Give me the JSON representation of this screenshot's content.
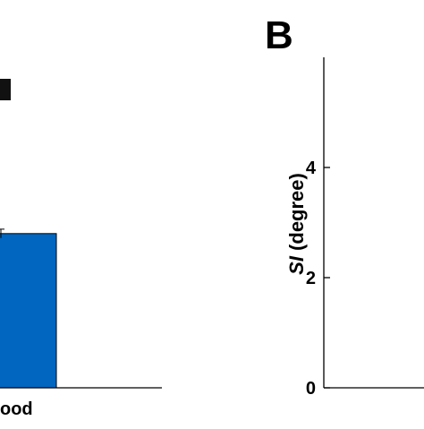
{
  "chart_data": [
    {
      "type": "bar",
      "panel_label": "",
      "categories": [
        "ood"
      ],
      "values": [
        2.8
      ],
      "error": [
        0.08
      ],
      "bar_color": "#0066c0",
      "ylim": [
        0,
        6
      ],
      "grid": false
    },
    {
      "type": "bar",
      "panel_label": "B",
      "categories": [],
      "values": [],
      "ylabel_italic": "SI",
      "ylabel_rest": " (degree)",
      "yticks": [
        "0",
        "2",
        "4"
      ],
      "ylim": [
        0,
        6
      ],
      "grid": false
    }
  ]
}
